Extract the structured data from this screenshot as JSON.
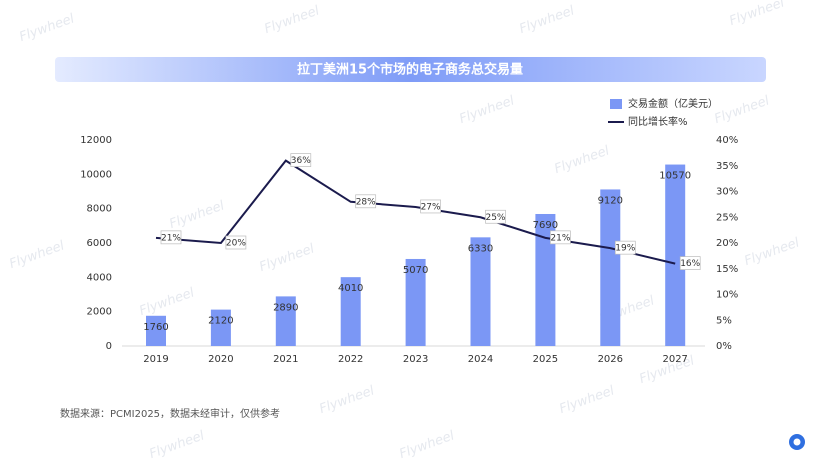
{
  "chart_data": {
    "type": "bar-line",
    "title": "拉丁美洲15个市场的电子商务总交易量",
    "categories": [
      "2019",
      "2020",
      "2021",
      "2022",
      "2023",
      "2024",
      "2025",
      "2026",
      "2027"
    ],
    "series": [
      {
        "name": "交易金额（亿美元）",
        "type": "bar",
        "color": "#7b97f5",
        "values": [
          1760,
          2120,
          2890,
          4010,
          5070,
          6330,
          7690,
          9120,
          10570
        ]
      },
      {
        "name": "同比增长率%",
        "type": "line",
        "axis": "y2",
        "color": "#1b1b4d",
        "values": [
          21,
          20,
          36,
          28,
          27,
          25,
          21,
          19,
          16
        ],
        "value_labels": [
          "21%",
          "20%",
          "36%",
          "28%",
          "27%",
          "25%",
          "21%",
          "19%",
          "16%"
        ]
      }
    ],
    "ylim": [
      0,
      12000
    ],
    "yticks": [
      0,
      2000,
      4000,
      6000,
      8000,
      10000,
      12000
    ],
    "y2lim": [
      0,
      40
    ],
    "y2ticks": [
      {
        "value": 0,
        "label": "0%"
      },
      {
        "value": 5,
        "label": "5%"
      },
      {
        "value": 10,
        "label": "10%"
      },
      {
        "value": 15,
        "label": "15%"
      },
      {
        "value": 20,
        "label": "20%"
      },
      {
        "value": 25,
        "label": "25%"
      },
      {
        "value": 30,
        "label": "30%"
      },
      {
        "value": 35,
        "label": "35%"
      },
      {
        "value": 40,
        "label": "40%"
      }
    ],
    "grid": false,
    "legend": "top-right",
    "source": "数据来源：PCMI2025，数据未经审计，仅供参考",
    "watermark": "Flywheel"
  }
}
